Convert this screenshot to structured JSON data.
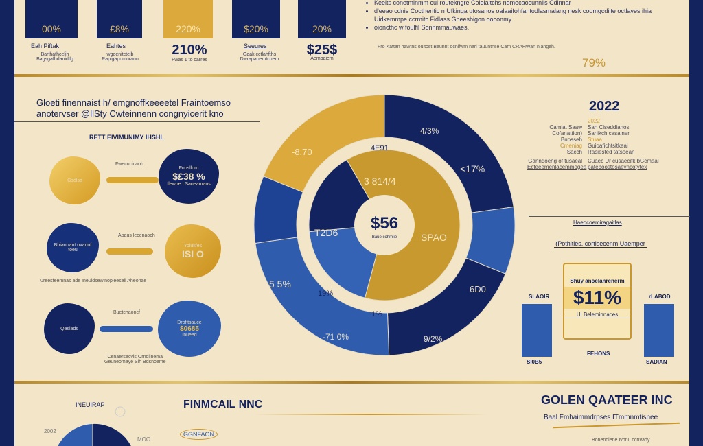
{
  "top_stats": [
    {
      "value": "00%",
      "label": "Eah Piftak",
      "sub": "Barthathcelih Bagsgafhdanidilg",
      "style": "navy"
    },
    {
      "value": "£8%",
      "label": "Eahtes",
      "sub": "wgeenitcteib Rapigapumnrann",
      "style": "navy"
    },
    {
      "value": "220%",
      "label": "210%",
      "sub": "Fwas 1 to carres",
      "style": "gold"
    },
    {
      "value": "$20%",
      "label": "Seeures",
      "sub": "Gaak cctlahfths Dwrapapemtchem",
      "style": "navy"
    },
    {
      "value": "20%",
      "label": "$25$",
      "sub": "Aembaiem",
      "style": "navy"
    }
  ],
  "bullets": [
    "Keeits conetminmm cui routekngre Coleiaitchs nomecaocunniis Cdinnar",
    "d'eeao cdnis Coctheritic n Ufkinga utosanos oalaaifohfantodlasmalang nesk coomgcdiite octlaves ihia Uidkemmpe ccrmitc Fidlass Gheesbigon ooconmy",
    "oioncthc w foulfil Sonnmmauwaes."
  ],
  "top_note": "Fro Kattan hawtns ouitost Beunnt ocnifwm narl tauuntnse Cam CRAHWan nlangeh.",
  "top_right_pct": "79%",
  "section_title": [
    "Gloeti finennaist h/ emgnoffkeeeetel Fraintoemso",
    "anotervser @llSty Cwteinnenn congnyicerit kno"
  ],
  "left_subtitle": "RETT EIVIMUNIMY IHSHL",
  "flows": [
    {
      "left": {
        "title": "Gsdlsa",
        "value": "",
        "color": "gold"
      },
      "bar_label": "Fwecucicaoh",
      "right": {
        "title": "Fuoslloro",
        "value": "$£38 %",
        "sub": "Ilewoe t Saoeamans",
        "color": "navy"
      },
      "bar": "gold"
    },
    {
      "left": {
        "title": "Bhianoant ovarlof toeu",
        "value": "",
        "color": "navy"
      },
      "bar_label": "Apaus lecenaoch",
      "right": {
        "title": "Yolukfes",
        "value": "ISI O",
        "sub": "",
        "color": "gold"
      },
      "bar": "gold"
    },
    {
      "left": {
        "title": "Qaslads",
        "value": "",
        "color": "navy"
      },
      "bar_label": "Buetchaoncf",
      "right": {
        "title": "Drofitsauce",
        "value": "$0685",
        "sub": "Inueed",
        "color": "blue"
      },
      "bar": "blue"
    }
  ],
  "mid_note": "Ureesfeemnas  ade  Ineuldsewlnopleesell Aheonae",
  "bottom_note": [
    "Cenaersecvis Orndiinema",
    "Geuneomaye Slh Bdsnoeme"
  ],
  "donut": {
    "center_value": "$56",
    "center_sub": "Baue cohmiie",
    "outer_labels": [
      "-8.70",
      "4/3%",
      "<17%",
      "5 5%",
      "6D0",
      "-71 0%",
      "9/2%"
    ],
    "inner_labels": [
      "3 814/4",
      "T2D6",
      "SPAO",
      "4E91",
      "19%",
      "1%"
    ]
  },
  "year_block": {
    "year": "2022",
    "sub": "2022",
    "rows": [
      [
        "Camiat Saaw",
        "Sah Ciseddianos"
      ],
      [
        "Cofanattion)",
        "Sarlikch casainer"
      ],
      [
        "Buosseh",
        "Stuaa"
      ],
      [
        "Cmeniag",
        "Guioafichtsitkeai"
      ],
      [
        "Sacch",
        "Rasiested tatsoean"
      ],
      [
        "Ganndoeng of tusaeal",
        "Cuaec Ur cusaecifk bGcmaal"
      ],
      [
        "Ecteeemenlacemmogea",
        "pateboostosaevncotytex"
      ]
    ]
  },
  "right_panel": {
    "heading": "Haeocoemiragaitlas",
    "subheading": "(Pothitles. cortlsecenm Uaemper",
    "card_title": "Shuy anoelanrenerm",
    "card_value": "$11%",
    "card_foot": "UI Beleminnaces",
    "bar_left_top": "SLAOIR",
    "bar_left_bottom": "SI0B5",
    "bar_right_top": "rLABOD",
    "bar_right_bottom": "SADIAN",
    "center_label": "FEHONS"
  },
  "footer": {
    "pie_label": "INEUIRAP",
    "pie_left": "2002",
    "pie_right": "MOO",
    "title": "FINMCAIL NNC",
    "logo_text": "GGNFAON",
    "company": "GOLEN QAATEER INC",
    "tagline": "Baal Fmhaimmdrpses ITmmnmtisnee",
    "note": "Bonendiene Ivonu ccrIvady"
  },
  "colors": {
    "navy": "#13235f",
    "gold": "#dba93c",
    "blue": "#2f5cad",
    "cream": "#f3e5c8"
  }
}
